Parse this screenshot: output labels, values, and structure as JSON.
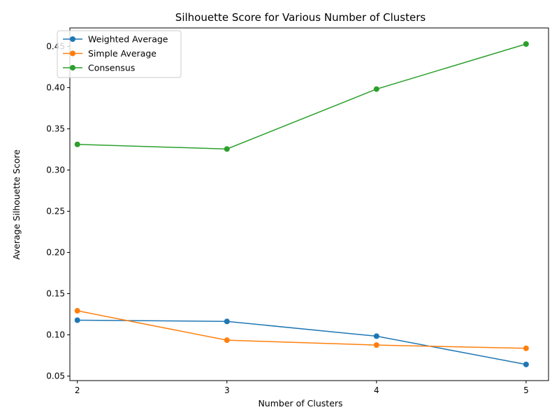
{
  "chart_data": {
    "type": "line",
    "title": "Silhouette Score for Various Number of Clusters",
    "xlabel": "Number of Clusters",
    "ylabel": "Average Silhouette Score",
    "x": [
      2,
      3,
      4,
      5
    ],
    "xlim": [
      1.95,
      5.15
    ],
    "ylim": [
      0.0445,
      0.4724
    ],
    "yticks": [
      "0.05",
      "0.10",
      "0.15",
      "0.20",
      "0.25",
      "0.30",
      "0.35",
      "0.40",
      "0.45"
    ],
    "xticks": [
      "2",
      "3",
      "4",
      "5"
    ],
    "grid": false,
    "legend_position": "upper-left",
    "series": [
      {
        "name": "Weighted Average",
        "color": "#1f77b4",
        "values": [
          0.1178,
          0.1163,
          0.0984,
          0.0641
        ]
      },
      {
        "name": "Simple Average",
        "color": "#ff7f0e",
        "values": [
          0.1292,
          0.0935,
          0.0876,
          0.0837
        ]
      },
      {
        "name": "Consensus",
        "color": "#2ca02c",
        "values": [
          0.3311,
          0.3255,
          0.3982,
          0.4529
        ]
      }
    ]
  }
}
